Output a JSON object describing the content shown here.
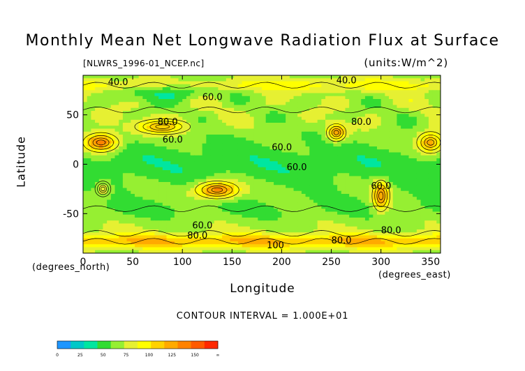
{
  "chart_data": {
    "type": "heatmap",
    "title": "Monthly Mean Net Longwave Radiation Flux at Surface",
    "file_label": "[NLWRS_1996-01_NCEP.nc]",
    "units_label": "(units:W/m^2)",
    "xlabel": "Longitude",
    "ylabel": "Latitude",
    "x_unit_label": "(degrees_east)",
    "y_unit_label": "(degrees_north)",
    "xlim": [
      0,
      360
    ],
    "ylim": [
      -90,
      90
    ],
    "x_ticks": [
      "0",
      "50",
      "100",
      "150",
      "200",
      "250",
      "300",
      "350"
    ],
    "y_ticks": [
      "50",
      "0",
      "-50"
    ],
    "contour_interval_text": "CONTOUR INTERVAL = 1.000E+01",
    "contour_labels": [
      "40.0",
      "60.0",
      "80.0",
      "60.0",
      "60.0",
      "60.0",
      "60.0",
      "80.0",
      "60.0",
      "80.0",
      "100",
      "80.0",
      "40.0",
      "80.0"
    ],
    "colorbar": {
      "ticks": [
        "0",
        "25",
        "50",
        "75",
        "100",
        "125",
        "150",
        "∞"
      ],
      "colors": [
        "#1e96ff",
        "#00c8c8",
        "#00e6a0",
        "#32dc32",
        "#96ef32",
        "#e6f032",
        "#ffff00",
        "#ffd200",
        "#ffaa00",
        "#ff8200",
        "#ff5a00",
        "#ff2800"
      ]
    }
  }
}
